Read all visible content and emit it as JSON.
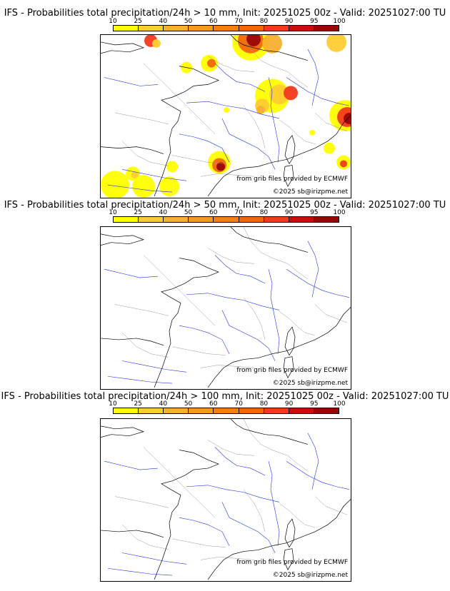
{
  "panels": [
    {
      "title": "IFS - Probabilities total precipitation/24h > 10 mm, Init: 20251025 00z - Valid: 20251027:00 TU",
      "threshold": "10 mm",
      "has_precip": true
    },
    {
      "title": "IFS - Probabilities total precipitation/24h > 50 mm, Init: 20251025 00z - Valid: 20251027:00 TU",
      "threshold": "50 mm",
      "has_precip": false
    },
    {
      "title": "IFS - Probabilities total precipitation/24h > 100 mm, Init: 20251025 00z - Valid: 20251027:00 TU",
      "threshold": "100 mm",
      "has_precip": false
    }
  ],
  "colorbar": {
    "ticks": [
      "10",
      "25",
      "40",
      "50",
      "60",
      "70",
      "80",
      "90",
      "95",
      "100"
    ],
    "colors": [
      "#ffff00",
      "#ffcc33",
      "#f7b030",
      "#f39a20",
      "#f28010",
      "#f26808",
      "#f23a1e",
      "#cc0b0b",
      "#990606",
      "#660000"
    ]
  },
  "credits": {
    "source": "from grib files provided by ECMWF",
    "copyright": "©2025 sb@irizpme.net"
  },
  "colors": {
    "coast": "#000000",
    "rivers": "#2233dd",
    "borders": "#999999"
  }
}
